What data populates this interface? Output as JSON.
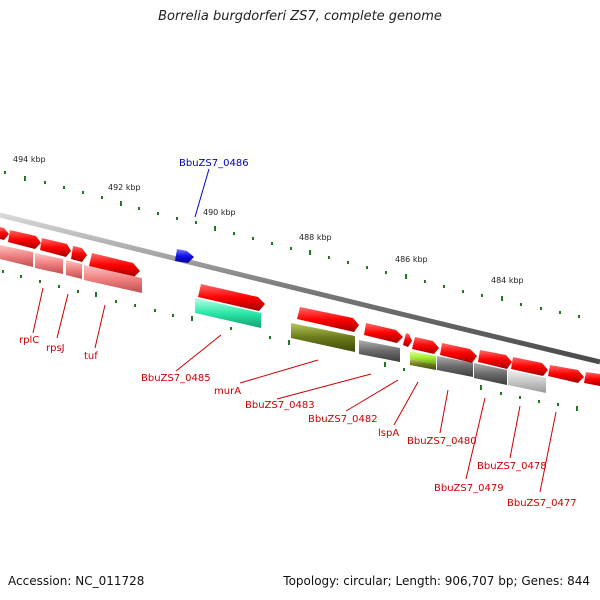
{
  "title": "Borrelia burgdorferi ZS7, complete genome",
  "footer": {
    "accession": "Accession: NC_011728",
    "topology": "Topology: circular; Length: 906,707 bp; Genes: 844"
  },
  "colors": {
    "backbone": "#8c8c8c",
    "tick": "#1f7a1f",
    "label_red": "#cc0000",
    "label_blue": "#0000cc"
  },
  "scale_labels": [
    "494 kbp",
    "492 kbp",
    "490 kbp",
    "488 kbp",
    "486 kbp",
    "484 kbp"
  ],
  "gene_labels": [
    {
      "text": "rplC",
      "color": "#cc0000"
    },
    {
      "text": "rpsJ",
      "color": "#cc0000"
    },
    {
      "text": "tuf",
      "color": "#cc0000"
    },
    {
      "text": "BbuZS7_0486",
      "color": "#0000cc"
    },
    {
      "text": "BbuZS7_0485",
      "color": "#cc0000"
    },
    {
      "text": "murA",
      "color": "#cc0000"
    },
    {
      "text": "BbuZS7_0483",
      "color": "#cc0000"
    },
    {
      "text": "BbuZS7_0482",
      "color": "#cc0000"
    },
    {
      "text": "lspA",
      "color": "#cc0000"
    },
    {
      "text": "BbuZS7_0480",
      "color": "#cc0000"
    },
    {
      "text": "BbuZS7_0478",
      "color": "#cc0000"
    },
    {
      "text": "BbuZS7_0479",
      "color": "#cc0000"
    },
    {
      "text": "BbuZS7_0477",
      "color": "#cc0000"
    }
  ]
}
